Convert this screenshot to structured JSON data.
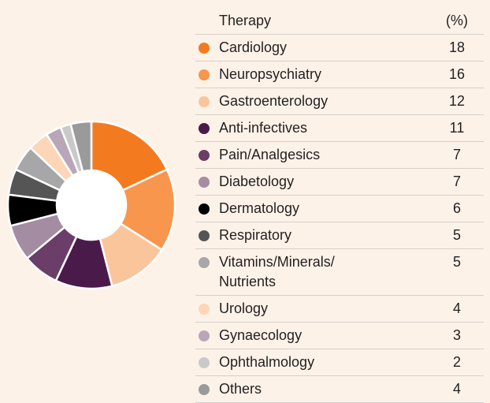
{
  "chart_data": {
    "type": "donut",
    "table_header": [
      "Therapy",
      "(%)"
    ],
    "categories": [
      "Cardiology",
      "Neuropsychiatry",
      "Gastroenterology",
      "Anti-infectives",
      "Pain/Analgesics",
      "Diabetology",
      "Dermatology",
      "Respiratory",
      "Vitamins/Minerals/ Nutrients",
      "Urology",
      "Gynaecology",
      "Ophthalmology",
      "Others"
    ],
    "values": [
      18,
      16,
      12,
      11,
      7,
      7,
      6,
      5,
      5,
      4,
      3,
      2,
      4
    ],
    "colors": [
      "#f47a20",
      "#f7964c",
      "#fbc59c",
      "#4a1a4b",
      "#6a3e68",
      "#a48ca3",
      "#000000",
      "#555555",
      "#a7a7a9",
      "#fcd6b7",
      "#b9a6b8",
      "#c9c9c9",
      "#9a9a9a"
    ]
  }
}
